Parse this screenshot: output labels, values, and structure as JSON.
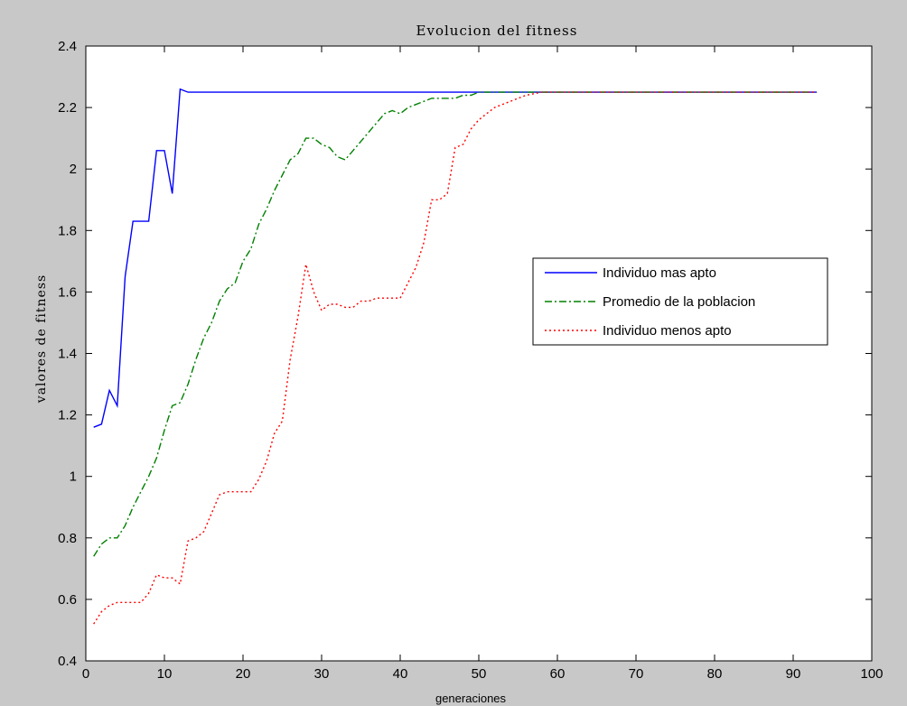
{
  "chart_data": {
    "type": "line",
    "title": "Evolucion del fitness",
    "xlabel": "generaciones",
    "ylabel": "valores de fitness",
    "xlim": [
      0,
      100
    ],
    "ylim": [
      0.4,
      2.4
    ],
    "xticks": [
      "0",
      "10",
      "20",
      "30",
      "40",
      "50",
      "60",
      "70",
      "80",
      "90",
      "100"
    ],
    "yticks": [
      "0.4",
      "0.6",
      "0.8",
      "1",
      "1.2",
      "1.4",
      "1.6",
      "1.8",
      "2",
      "2.2",
      "2.4"
    ],
    "grid": false,
    "legend_position": "right",
    "series": [
      {
        "name": "Individuo mas apto",
        "color": "#0000ff",
        "style": "solid",
        "x": [
          1,
          2,
          3,
          4,
          5,
          6,
          7,
          8,
          9,
          10,
          11,
          12,
          13,
          93
        ],
        "y": [
          1.16,
          1.17,
          1.28,
          1.23,
          1.65,
          1.83,
          1.83,
          1.83,
          2.06,
          2.06,
          1.92,
          2.26,
          2.25,
          2.25
        ]
      },
      {
        "name": "Promedio de la poblacion",
        "color": "#008000",
        "style": "dashdot",
        "x": [
          1,
          2,
          3,
          4,
          5,
          6,
          7,
          8,
          9,
          10,
          11,
          12,
          13,
          14,
          15,
          16,
          17,
          18,
          19,
          20,
          21,
          22,
          23,
          24,
          25,
          26,
          27,
          28,
          29,
          30,
          31,
          32,
          33,
          34,
          35,
          36,
          37,
          38,
          39,
          40,
          41,
          42,
          43,
          44,
          45,
          46,
          47,
          48,
          49,
          50,
          52,
          55,
          60,
          93
        ],
        "y": [
          0.74,
          0.78,
          0.8,
          0.8,
          0.84,
          0.9,
          0.95,
          1.0,
          1.06,
          1.15,
          1.23,
          1.24,
          1.3,
          1.38,
          1.45,
          1.5,
          1.57,
          1.61,
          1.63,
          1.7,
          1.74,
          1.82,
          1.87,
          1.93,
          1.98,
          2.03,
          2.05,
          2.1,
          2.1,
          2.08,
          2.07,
          2.04,
          2.03,
          2.06,
          2.09,
          2.12,
          2.15,
          2.18,
          2.19,
          2.18,
          2.2,
          2.21,
          2.22,
          2.23,
          2.23,
          2.23,
          2.23,
          2.24,
          2.24,
          2.25,
          2.25,
          2.25,
          2.25,
          2.25
        ]
      },
      {
        "name": "Individuo menos apto",
        "color": "#ff0000",
        "style": "dotted",
        "x": [
          1,
          2,
          3,
          4,
          5,
          6,
          7,
          8,
          9,
          10,
          11,
          12,
          13,
          14,
          15,
          16,
          17,
          18,
          19,
          20,
          21,
          22,
          23,
          24,
          25,
          26,
          27,
          28,
          29,
          30,
          31,
          32,
          33,
          34,
          35,
          36,
          37,
          38,
          39,
          40,
          41,
          42,
          43,
          44,
          45,
          46,
          47,
          48,
          49,
          50,
          51,
          52,
          53,
          54,
          55,
          56,
          58,
          60,
          93
        ],
        "y": [
          0.52,
          0.56,
          0.58,
          0.59,
          0.59,
          0.59,
          0.59,
          0.62,
          0.68,
          0.67,
          0.67,
          0.65,
          0.79,
          0.8,
          0.82,
          0.88,
          0.94,
          0.95,
          0.95,
          0.95,
          0.95,
          0.99,
          1.05,
          1.14,
          1.18,
          1.38,
          1.52,
          1.69,
          1.6,
          1.54,
          1.56,
          1.56,
          1.55,
          1.55,
          1.57,
          1.57,
          1.58,
          1.58,
          1.58,
          1.58,
          1.63,
          1.68,
          1.76,
          1.9,
          1.9,
          1.92,
          2.07,
          2.08,
          2.13,
          2.16,
          2.18,
          2.2,
          2.21,
          2.22,
          2.23,
          2.24,
          2.25,
          2.25,
          2.25
        ]
      }
    ]
  }
}
